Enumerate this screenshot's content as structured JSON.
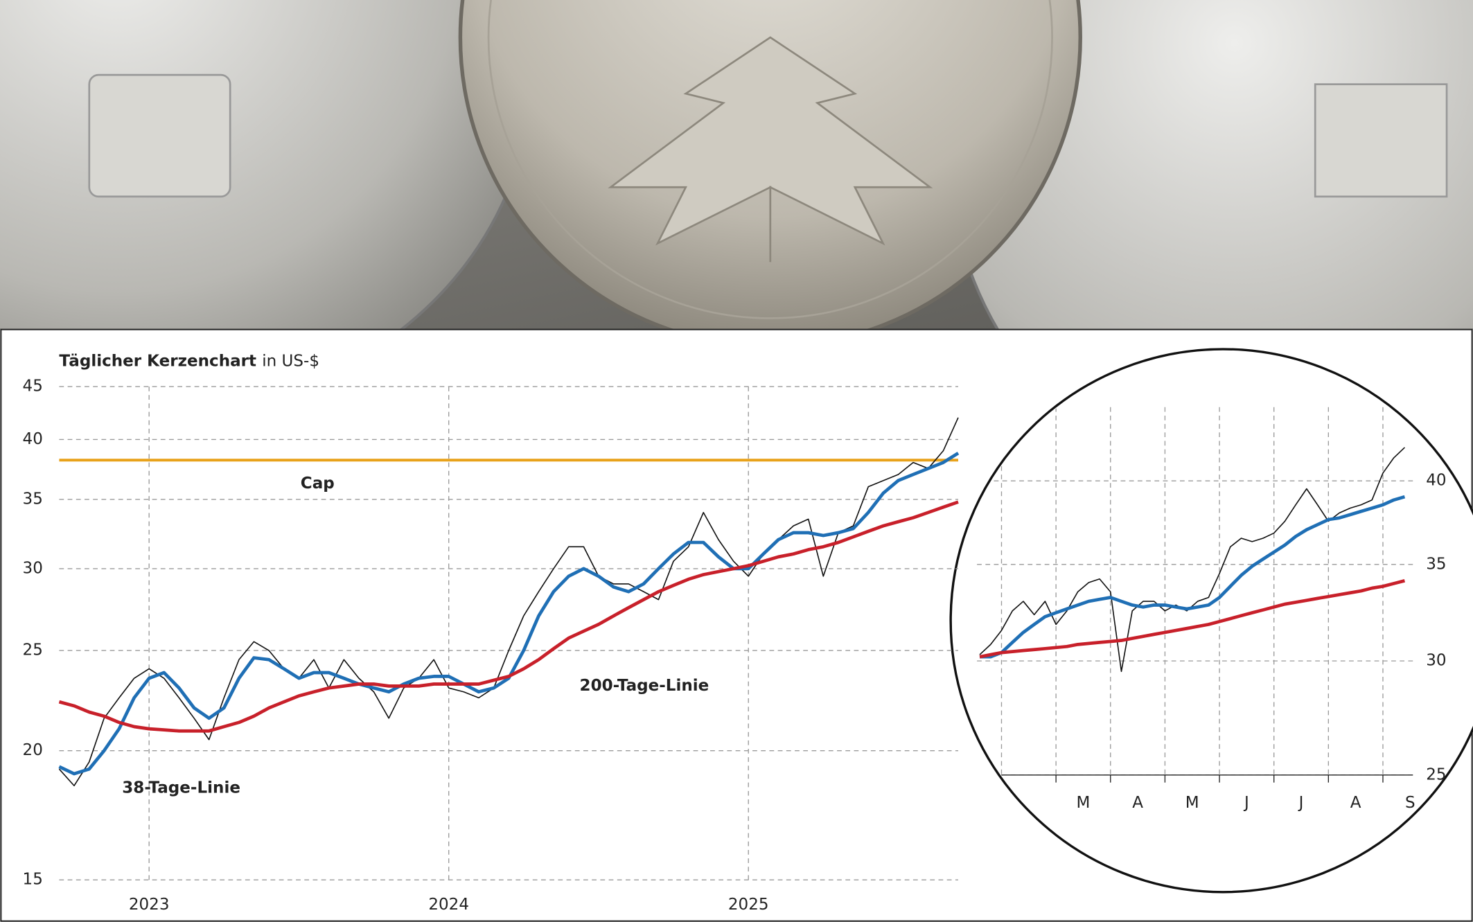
{
  "chart_data": [
    {
      "type": "line",
      "title": "Täglicher Kerzenchart",
      "subtitle": "in US-$",
      "x": [
        2022.7,
        2022.75,
        2022.8,
        2022.85,
        2022.9,
        2022.95,
        2023.0,
        2023.05,
        2023.1,
        2023.15,
        2023.2,
        2023.25,
        2023.3,
        2023.35,
        2023.4,
        2023.45,
        2023.5,
        2023.55,
        2023.6,
        2023.65,
        2023.7,
        2023.75,
        2023.8,
        2023.85,
        2023.9,
        2023.95,
        2024.0,
        2024.05,
        2024.1,
        2024.15,
        2024.2,
        2024.25,
        2024.3,
        2024.35,
        2024.4,
        2024.45,
        2024.5,
        2024.55,
        2024.6,
        2024.65,
        2024.7,
        2024.75,
        2024.8,
        2024.85,
        2024.9,
        2024.95,
        2025.0,
        2025.05,
        2025.1,
        2025.15,
        2025.2,
        2025.25,
        2025.3,
        2025.35,
        2025.4,
        2025.45,
        2025.5,
        2025.55,
        2025.6,
        2025.65,
        2025.7
      ],
      "series": [
        {
          "color": "#111111",
          "values": [
            19.2,
            18.5,
            19.5,
            21.5,
            22.5,
            23.5,
            24,
            23.5,
            22.5,
            21.5,
            20.5,
            22.5,
            24.5,
            25.5,
            25,
            24,
            23.5,
            24.5,
            23,
            24.5,
            23.5,
            22.8,
            21.5,
            23,
            23.5,
            24.5,
            23,
            22.8,
            22.5,
            23,
            25,
            27,
            28.5,
            30,
            31.5,
            31.5,
            29.5,
            29,
            29,
            28.5,
            28,
            30.5,
            31.5,
            34,
            32,
            30.5,
            29.5,
            31,
            32,
            33,
            33.5,
            29.5,
            32.5,
            33,
            36,
            36.5,
            37,
            38,
            37.5,
            39,
            42
          ]
        },
        {
          "name": "38-Tage-Linie",
          "color": "#1f6fb5",
          "values": [
            19.3,
            19,
            19.2,
            20,
            21,
            22.5,
            23.5,
            23.8,
            23,
            22,
            21.5,
            22,
            23.5,
            24.6,
            24.5,
            24,
            23.5,
            23.8,
            23.8,
            23.5,
            23.2,
            23,
            22.8,
            23.2,
            23.5,
            23.6,
            23.6,
            23.2,
            22.8,
            23,
            23.5,
            25,
            27,
            28.5,
            29.5,
            30,
            29.5,
            28.8,
            28.5,
            29,
            30,
            31,
            31.8,
            31.8,
            30.8,
            30,
            30,
            31,
            32,
            32.5,
            32.5,
            32.3,
            32.5,
            32.8,
            34,
            35.5,
            36.5,
            37,
            37.5,
            38,
            38.8
          ]
        },
        {
          "name": "200-Tage-Linie",
          "color": "#c8202a",
          "values": [
            22.3,
            22.1,
            21.8,
            21.6,
            21.3,
            21.1,
            21,
            20.95,
            20.9,
            20.9,
            20.9,
            21.1,
            21.3,
            21.6,
            22,
            22.3,
            22.6,
            22.8,
            23,
            23.1,
            23.2,
            23.2,
            23.1,
            23.1,
            23.1,
            23.2,
            23.2,
            23.2,
            23.2,
            23.4,
            23.6,
            24,
            24.5,
            25.1,
            25.7,
            26.1,
            26.5,
            27,
            27.5,
            28,
            28.5,
            28.9,
            29.3,
            29.6,
            29.8,
            30,
            30.2,
            30.5,
            30.8,
            31,
            31.3,
            31.5,
            31.8,
            32.2,
            32.6,
            33,
            33.3,
            33.6,
            34,
            34.4,
            34.8
          ]
        }
      ],
      "reference_line": {
        "name": "Cap",
        "value": 38.2,
        "color": "#e8a21a"
      },
      "xlim": [
        2022.7,
        2025.7
      ],
      "xticks": [
        2023,
        2024,
        2025
      ],
      "ylim": [
        15,
        45
      ],
      "yticks": [
        15,
        20,
        25,
        30,
        35,
        40,
        45
      ],
      "log_scale": true,
      "grid": true,
      "y_axis_side": "left"
    },
    {
      "type": "line",
      "categories": [
        "M",
        "A",
        "M",
        "J",
        "J",
        "A",
        "S"
      ],
      "x": [
        -1.4,
        -1.2,
        -1.0,
        -0.8,
        -0.6,
        -0.4,
        -0.2,
        0,
        0.2,
        0.4,
        0.6,
        0.8,
        1.0,
        1.2,
        1.4,
        1.6,
        1.8,
        2.0,
        2.2,
        2.4,
        2.6,
        2.8,
        3.0,
        3.2,
        3.4,
        3.6,
        3.8,
        4.0,
        4.2,
        4.4,
        4.6,
        4.8,
        5.0,
        5.2,
        5.4,
        5.6,
        5.8,
        6.0,
        6.2,
        6.4
      ],
      "series": [
        {
          "color": "#111111",
          "values": [
            30.3,
            30.8,
            31.5,
            32.5,
            33,
            32.3,
            33,
            31.8,
            32.5,
            33.5,
            34,
            34.2,
            33.5,
            29.5,
            32.5,
            33,
            33,
            32.5,
            32.8,
            32.5,
            33,
            33.2,
            34.5,
            36,
            36.5,
            36.3,
            36.5,
            36.8,
            37.5,
            38.5,
            39.5,
            38.5,
            37.5,
            38,
            38.3,
            38.5,
            38.8,
            40.5,
            41.5,
            42.2
          ]
        },
        {
          "color": "#1f6fb5",
          "values": [
            30.2,
            30.2,
            30.4,
            30.9,
            31.4,
            31.8,
            32.2,
            32.4,
            32.6,
            32.8,
            33,
            33.1,
            33.2,
            33,
            32.8,
            32.7,
            32.8,
            32.8,
            32.7,
            32.6,
            32.7,
            32.8,
            33.2,
            33.8,
            34.4,
            34.9,
            35.3,
            35.7,
            36.1,
            36.6,
            37,
            37.3,
            37.6,
            37.7,
            37.9,
            38.1,
            38.3,
            38.5,
            38.8,
            39
          ]
        },
        {
          "color": "#c8202a",
          "values": [
            30.2,
            30.3,
            30.4,
            30.45,
            30.5,
            30.55,
            30.6,
            30.65,
            30.7,
            30.8,
            30.85,
            30.9,
            30.95,
            31,
            31.1,
            31.2,
            31.3,
            31.4,
            31.5,
            31.6,
            31.7,
            31.8,
            31.95,
            32.1,
            32.25,
            32.4,
            32.55,
            32.7,
            32.85,
            32.95,
            33.05,
            33.15,
            33.25,
            33.35,
            33.45,
            33.55,
            33.7,
            33.8,
            33.95,
            34.1
          ]
        }
      ],
      "xlim": [
        -1.45,
        6.55
      ],
      "xticks": [
        -1,
        0,
        1,
        2,
        3,
        4,
        5,
        6
      ],
      "ylim": [
        25,
        45
      ],
      "yticks": [
        25,
        30,
        35,
        40
      ],
      "log_scale": true,
      "grid": true,
      "y_axis_side": "right"
    }
  ]
}
